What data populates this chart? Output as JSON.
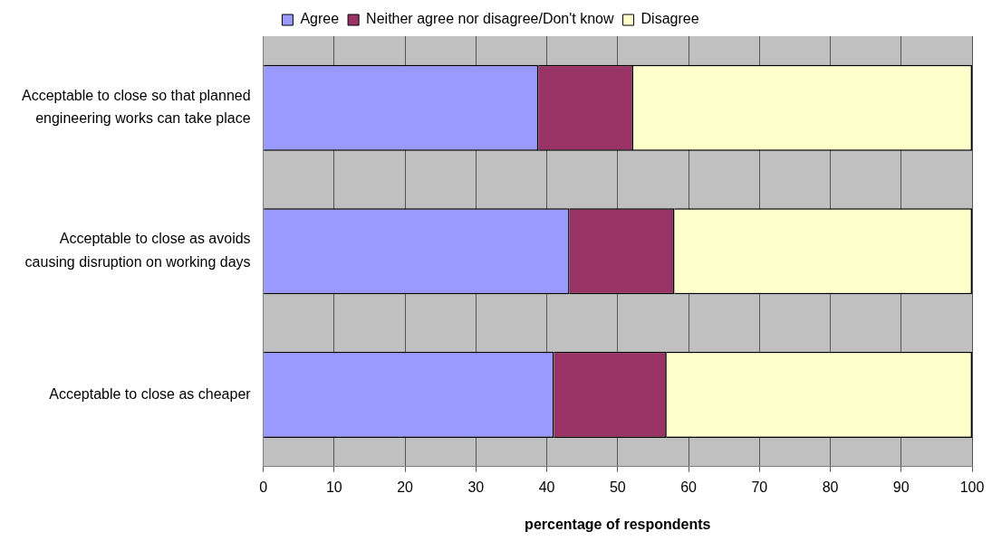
{
  "chart_data": {
    "type": "bar",
    "orientation": "horizontal",
    "stacked": true,
    "xlabel": "percentage of respondents",
    "categories": [
      "Acceptable to close so that planned engineering works can take place",
      "Acceptable to close as avoids causing disruption on working days",
      "Acceptable to close as cheaper"
    ],
    "series": [
      {
        "name": "Agree",
        "color": "#9999ff",
        "values": [
          38.8,
          43.2,
          41.0
        ]
      },
      {
        "name": "Neither agree nor disagree/Don't know",
        "color": "#993366",
        "values": [
          13.4,
          14.8,
          15.9
        ]
      },
      {
        "name": "Disagree",
        "color": "#ffffcc",
        "values": [
          47.8,
          42.0,
          43.1
        ]
      }
    ],
    "xlim": [
      0,
      100
    ],
    "xticks": [
      0,
      10,
      20,
      30,
      40,
      50,
      60,
      70,
      80,
      90,
      100
    ],
    "grid": "x",
    "legend": "top"
  }
}
